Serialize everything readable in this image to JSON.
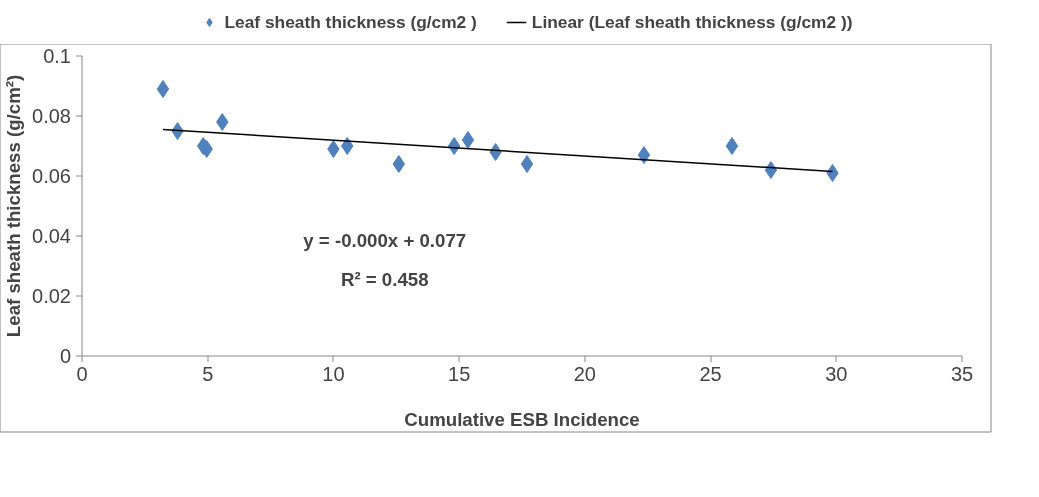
{
  "chart_data": {
    "type": "scatter",
    "xlabel": "Cumulative ESB Incidence",
    "ylabel": "Leaf sheath thickness (g/cm²)",
    "xlim": [
      0,
      35
    ],
    "xticks": [
      0,
      5,
      10,
      15,
      20,
      25,
      30,
      35
    ],
    "ylim": [
      0,
      0.1
    ],
    "yticks": [
      0,
      0.02,
      0.04,
      0.06,
      0.08,
      0.1
    ],
    "grid": false,
    "legend": "top",
    "marker": "diamond",
    "series": [
      {
        "name": "Leaf sheath thickness (g/cm2 )",
        "color": "#4f81bd",
        "x": [
          3.22,
          3.8,
          4.82,
          4.96,
          5.58,
          10.0,
          10.55,
          12.6,
          14.8,
          15.35,
          16.45,
          17.7,
          22.35,
          25.85,
          27.4,
          29.85
        ],
        "values": [
          0.089,
          0.075,
          0.07,
          0.069,
          0.078,
          0.069,
          0.07,
          0.064,
          0.07,
          0.072,
          0.068,
          0.064,
          0.067,
          0.07,
          0.062,
          0.061
        ]
      },
      {
        "name": "Linear (Leaf sheath thickness (g/cm2 ))",
        "type": "line",
        "marker": "none",
        "color": "#000000",
        "x": [
          3.22,
          29.85
        ],
        "values": [
          0.0755,
          0.0615
        ]
      }
    ],
    "annotations": [
      "y = -0.000x + 0.077",
      "R² = 0.458"
    ]
  }
}
